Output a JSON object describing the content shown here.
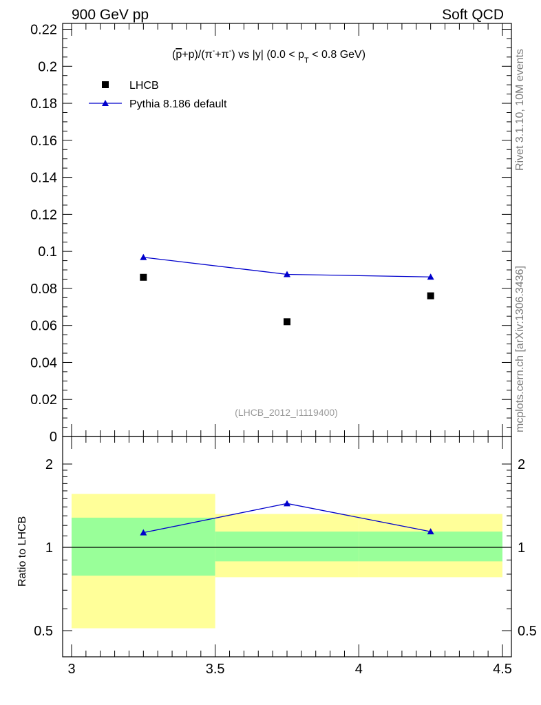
{
  "header": {
    "left": "900 GeV pp",
    "right": "Soft QCD"
  },
  "side_labels": {
    "rivet": "Rivet 3.1.10,  10M events",
    "url": "mcplots.cern.ch [arXiv:1306.3436]"
  },
  "chart_data": [
    {
      "type": "scatter",
      "panel": "main",
      "title": "(p̅+p)/(π⁻+π⁻) vs |y| (0.0 < pT < 0.8 GeV)",
      "reference_label": "(LHCB_2012_I1119400)",
      "xlabel": "",
      "ylabel": "",
      "xlim": [
        2.95,
        4.5
      ],
      "ylim": [
        0,
        0.223
      ],
      "yticks": [
        0,
        0.02,
        0.04,
        0.06,
        0.08,
        0.1,
        0.12,
        0.14,
        0.16,
        0.18,
        0.2,
        0.22
      ],
      "ytick_labels": [
        "0",
        "0.02",
        "0.04",
        "0.06",
        "0.08",
        "0.1",
        "0.12",
        "0.14",
        "0.16",
        "0.18",
        "0.2",
        "0.22"
      ],
      "legend": {
        "position": "top-left",
        "entries": [
          "LHCB",
          "Pythia 8.186 default"
        ]
      },
      "series": [
        {
          "name": "LHCB",
          "style": "square-marker",
          "color": "#000000",
          "x": [
            3.25,
            3.75,
            4.25
          ],
          "y": [
            0.086,
            0.062,
            0.076
          ]
        },
        {
          "name": "Pythia 8.186 default",
          "style": "line-triangle",
          "color": "#0000cc",
          "x": [
            3.25,
            3.75,
            4.25
          ],
          "y": [
            0.0968,
            0.0876,
            0.0862
          ]
        }
      ]
    },
    {
      "type": "line",
      "panel": "ratio",
      "ylabel": "Ratio to LHCB",
      "xlim": [
        2.95,
        4.5
      ],
      "ylim": [
        0.42,
        2.35
      ],
      "yscale": "log",
      "yticks": [
        0.5,
        1,
        2
      ],
      "ytick_labels": [
        "0.5",
        "1",
        "2"
      ],
      "xticks": [
        3,
        3.5,
        4,
        4.5
      ],
      "xtick_labels": [
        "3",
        "3.5",
        "4",
        "4.5"
      ],
      "reference_line": 1,
      "bands": [
        {
          "x0": 3.0,
          "x1": 3.5,
          "yellow": [
            0.51,
            1.56
          ],
          "green": [
            0.79,
            1.28
          ]
        },
        {
          "x0": 3.5,
          "x1": 4.0,
          "yellow": [
            0.78,
            1.32
          ],
          "green": [
            0.89,
            1.14
          ]
        },
        {
          "x0": 4.0,
          "x1": 4.5,
          "yellow": [
            0.78,
            1.32
          ],
          "green": [
            0.89,
            1.14
          ]
        }
      ],
      "band_colors": {
        "yellow": "#ffff99",
        "green": "#99ff99"
      },
      "series": [
        {
          "name": "Pythia 8.186 default",
          "color": "#0000cc",
          "x": [
            3.25,
            3.75,
            4.25
          ],
          "y": [
            1.13,
            1.44,
            1.14
          ]
        }
      ]
    }
  ]
}
